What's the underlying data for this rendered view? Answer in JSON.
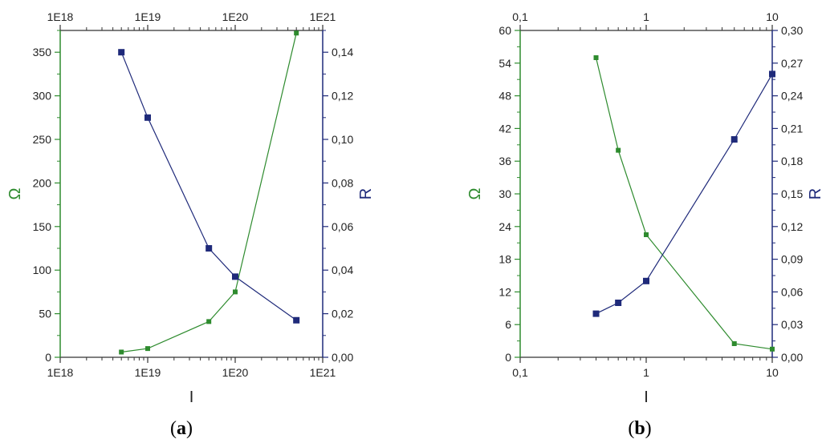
{
  "colors": {
    "green": "#2e8b2e",
    "blue": "#1f2a7a",
    "axis_black": "#333333"
  },
  "chart_data": [
    {
      "type": "line",
      "caption": "a",
      "xlabel": "I",
      "ylabel": "Ω",
      "y2label": "R",
      "x_scale": "log",
      "xlim": [
        1e+18,
        1e+21
      ],
      "ylim": [
        0,
        375
      ],
      "y2lim": [
        0,
        0.15
      ],
      "x_ticks": [
        {
          "value": 1e+18,
          "label": "1E18"
        },
        {
          "value": 1e+19,
          "label": "1E19"
        },
        {
          "value": 1e+20,
          "label": "1E20"
        },
        {
          "value": 1e+21,
          "label": "1E21"
        }
      ],
      "y_ticks": [
        {
          "value": 0,
          "label": "0"
        },
        {
          "value": 50,
          "label": "50"
        },
        {
          "value": 100,
          "label": "100"
        },
        {
          "value": 150,
          "label": "150"
        },
        {
          "value": 200,
          "label": "200"
        },
        {
          "value": 250,
          "label": "250"
        },
        {
          "value": 300,
          "label": "300"
        },
        {
          "value": 350,
          "label": "350"
        }
      ],
      "y2_ticks": [
        {
          "value": 0,
          "label": "0,00"
        },
        {
          "value": 0.02,
          "label": "0,02"
        },
        {
          "value": 0.04,
          "label": "0,04"
        },
        {
          "value": 0.06,
          "label": "0,06"
        },
        {
          "value": 0.08,
          "label": "0,08"
        },
        {
          "value": 0.1,
          "label": "0,10"
        },
        {
          "value": 0.12,
          "label": "0,12"
        },
        {
          "value": 0.14,
          "label": "0,14"
        }
      ],
      "series": [
        {
          "axis": "left",
          "color": "#2e8b2e",
          "x": [
            5e+18,
            1e+19,
            5e+19,
            1e+20,
            5e+20
          ],
          "y": [
            6,
            10,
            41,
            75,
            372
          ]
        },
        {
          "axis": "right",
          "color": "#1f2a7a",
          "x": [
            5e+18,
            1e+19,
            5e+19,
            1e+20,
            5e+20
          ],
          "y": [
            0.14,
            0.11,
            0.05,
            0.037,
            0.017
          ]
        }
      ]
    },
    {
      "type": "line",
      "caption": "b",
      "xlabel": "I",
      "ylabel": "Ω",
      "y2label": "R",
      "x_scale": "log",
      "xlim": [
        0.1,
        10
      ],
      "ylim": [
        0,
        60
      ],
      "y2lim": [
        0,
        0.3
      ],
      "x_ticks": [
        {
          "value": 0.1,
          "label": "0,1"
        },
        {
          "value": 1,
          "label": "1"
        },
        {
          "value": 10,
          "label": "10"
        }
      ],
      "y_ticks": [
        {
          "value": 0,
          "label": "0"
        },
        {
          "value": 6,
          "label": "6"
        },
        {
          "value": 12,
          "label": "12"
        },
        {
          "value": 18,
          "label": "18"
        },
        {
          "value": 24,
          "label": "24"
        },
        {
          "value": 30,
          "label": "30"
        },
        {
          "value": 36,
          "label": "36"
        },
        {
          "value": 42,
          "label": "42"
        },
        {
          "value": 48,
          "label": "48"
        },
        {
          "value": 54,
          "label": "54"
        },
        {
          "value": 60,
          "label": "60"
        }
      ],
      "y2_ticks": [
        {
          "value": 0,
          "label": "0,00"
        },
        {
          "value": 0.03,
          "label": "0,03"
        },
        {
          "value": 0.06,
          "label": "0,06"
        },
        {
          "value": 0.09,
          "label": "0,09"
        },
        {
          "value": 0.12,
          "label": "0,12"
        },
        {
          "value": 0.15,
          "label": "0,15"
        },
        {
          "value": 0.18,
          "label": "0,18"
        },
        {
          "value": 0.21,
          "label": "0,21"
        },
        {
          "value": 0.24,
          "label": "0,24"
        },
        {
          "value": 0.27,
          "label": "0,27"
        },
        {
          "value": 0.3,
          "label": "0,30"
        }
      ],
      "series": [
        {
          "axis": "left",
          "color": "#2e8b2e",
          "x": [
            0.4,
            0.6,
            1,
            5,
            10
          ],
          "y": [
            55,
            38,
            22.5,
            2.5,
            1.5
          ]
        },
        {
          "axis": "right",
          "color": "#1f2a7a",
          "x": [
            0.4,
            0.6,
            1,
            5,
            10
          ],
          "y": [
            0.04,
            0.05,
            0.07,
            0.2,
            0.26
          ]
        }
      ]
    }
  ]
}
